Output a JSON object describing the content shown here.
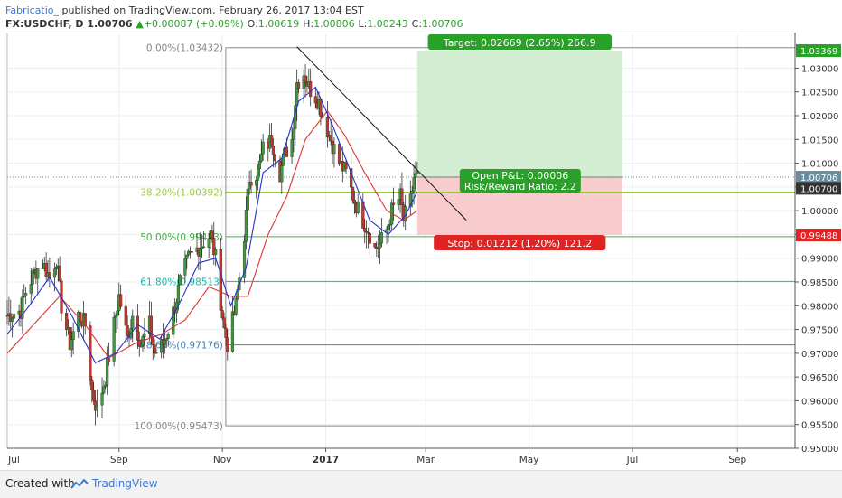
{
  "header": {
    "author": "Fabricatio_",
    "published": " published on TradingView.com, February 26, 2017 13:04 EST",
    "symbol": "FX:USDCHF, D",
    "last": "1.00706",
    "change": "+0.00087 (+0.09%)",
    "o_label": "O:",
    "o_val": "1.00619",
    "h_label": "H:",
    "h_val": "1.00806",
    "l_label": "L:",
    "l_val": "1.00243",
    "c_label": "C:",
    "c_val": "1.00706"
  },
  "footer": {
    "created": "Created with",
    "brand": "TradingView"
  },
  "colors": {
    "up": "#3d9b3d",
    "down": "#c0392b",
    "ma_fast": "#2233cc",
    "ma_slow": "#dd3333",
    "target_zone": "#cdebcd",
    "stop_zone": "#f7c7c7"
  },
  "chart_data": {
    "type": "candlestick",
    "symbol": "FX:USDCHF",
    "interval": "D",
    "ylim": [
      0.95,
      1.0375
    ],
    "x_ticks": [
      {
        "label": "Jul",
        "date": "2016-07-01"
      },
      {
        "label": "Sep",
        "date": "2016-09-01"
      },
      {
        "label": "Nov",
        "date": "2016-11-01"
      },
      {
        "label": "2017",
        "date": "2017-01-01"
      },
      {
        "label": "Mar",
        "date": "2017-03-01"
      },
      {
        "label": "May",
        "date": "2017-05-01"
      },
      {
        "label": "Jul",
        "date": "2017-07-01"
      },
      {
        "label": "Sep",
        "date": "2017-09-01"
      }
    ],
    "y_ticks": [
      "1.03000",
      "1.02500",
      "1.02000",
      "1.01500",
      "1.01000",
      "1.00500",
      "1.00000",
      "0.99500",
      "0.99000",
      "0.98500",
      "0.98000",
      "0.97500",
      "0.97000",
      "0.96500",
      "0.96000",
      "0.95500",
      "0.95000"
    ],
    "close_path": [
      [
        "2016-06-27",
        0.978
      ],
      [
        "2016-07-05",
        0.979
      ],
      [
        "2016-07-08",
        0.983
      ],
      [
        "2016-07-13",
        0.987
      ],
      [
        "2016-07-18",
        0.989
      ],
      [
        "2016-07-22",
        0.986
      ],
      [
        "2016-07-26",
        0.99
      ],
      [
        "2016-07-29",
        0.98
      ],
      [
        "2016-08-03",
        0.972
      ],
      [
        "2016-08-08",
        0.978
      ],
      [
        "2016-08-12",
        0.976
      ],
      [
        "2016-08-16",
        0.962
      ],
      [
        "2016-08-19",
        0.958
      ],
      [
        "2016-08-24",
        0.965
      ],
      [
        "2016-08-29",
        0.976
      ],
      [
        "2016-09-01",
        0.982
      ],
      [
        "2016-09-06",
        0.973
      ],
      [
        "2016-09-09",
        0.978
      ],
      [
        "2016-09-14",
        0.972
      ],
      [
        "2016-09-19",
        0.976
      ],
      [
        "2016-09-22",
        0.97
      ],
      [
        "2016-09-27",
        0.972
      ],
      [
        "2016-09-30",
        0.975
      ],
      [
        "2016-10-04",
        0.98
      ],
      [
        "2016-10-07",
        0.985
      ],
      [
        "2016-10-12",
        0.99
      ],
      [
        "2016-10-17",
        0.992
      ],
      [
        "2016-10-20",
        0.993
      ],
      [
        "2016-10-25",
        0.995
      ],
      [
        "2016-10-28",
        0.99
      ],
      [
        "2016-11-02",
        0.975
      ],
      [
        "2016-11-04",
        0.972
      ],
      [
        "2016-11-09",
        0.98
      ],
      [
        "2016-11-14",
        0.995
      ],
      [
        "2016-11-17",
        1.007
      ],
      [
        "2016-11-22",
        1.008
      ],
      [
        "2016-11-25",
        1.013
      ],
      [
        "2016-11-30",
        1.015
      ],
      [
        "2016-12-05",
        1.008
      ],
      [
        "2016-12-08",
        1.012
      ],
      [
        "2016-12-12",
        1.015
      ],
      [
        "2016-12-15",
        1.027
      ],
      [
        "2016-12-19",
        1.029
      ],
      [
        "2016-12-22",
        1.026
      ],
      [
        "2016-12-28",
        1.023
      ],
      [
        "2016-12-30",
        1.02
      ],
      [
        "2017-01-04",
        1.015
      ],
      [
        "2017-01-09",
        1.01
      ],
      [
        "2017-01-13",
        1.008
      ],
      [
        "2017-01-18",
        1.002
      ],
      [
        "2017-01-23",
        0.998
      ],
      [
        "2017-01-26",
        0.996
      ],
      [
        "2017-01-30",
        0.992
      ],
      [
        "2017-02-02",
        0.993
      ],
      [
        "2017-02-06",
        0.996
      ],
      [
        "2017-02-09",
        1.0
      ],
      [
        "2017-02-14",
        1.003
      ],
      [
        "2017-02-16",
        0.998
      ],
      [
        "2017-02-20",
        1.002
      ],
      [
        "2017-02-22",
        1.007
      ],
      [
        "2017-02-24",
        1.0071
      ]
    ],
    "ema_fast": [
      [
        "2016-06-27",
        0.974
      ],
      [
        "2016-07-10",
        0.98
      ],
      [
        "2016-07-22",
        0.986
      ],
      [
        "2016-08-04",
        0.978
      ],
      [
        "2016-08-18",
        0.968
      ],
      [
        "2016-08-30",
        0.97
      ],
      [
        "2016-09-12",
        0.976
      ],
      [
        "2016-09-25",
        0.973
      ],
      [
        "2016-10-06",
        0.98
      ],
      [
        "2016-10-18",
        0.989
      ],
      [
        "2016-10-28",
        0.99
      ],
      [
        "2016-11-06",
        0.98
      ],
      [
        "2016-11-15",
        0.988
      ],
      [
        "2016-11-25",
        1.008
      ],
      [
        "2016-12-06",
        1.011
      ],
      [
        "2016-12-16",
        1.023
      ],
      [
        "2016-12-26",
        1.026
      ],
      [
        "2017-01-05",
        1.018
      ],
      [
        "2017-01-16",
        1.008
      ],
      [
        "2017-01-27",
        0.998
      ],
      [
        "2017-02-07",
        0.995
      ],
      [
        "2017-02-17",
        0.999
      ],
      [
        "2017-02-24",
        1.004
      ]
    ],
    "ema_slow": [
      [
        "2016-06-27",
        0.97
      ],
      [
        "2016-07-15",
        0.977
      ],
      [
        "2016-07-28",
        0.982
      ],
      [
        "2016-08-12",
        0.976
      ],
      [
        "2016-08-26",
        0.969
      ],
      [
        "2016-09-10",
        0.972
      ],
      [
        "2016-09-26",
        0.974
      ],
      [
        "2016-10-10",
        0.977
      ],
      [
        "2016-10-24",
        0.984
      ],
      [
        "2016-11-06",
        0.982
      ],
      [
        "2016-11-16",
        0.982
      ],
      [
        "2016-11-28",
        0.995
      ],
      [
        "2016-12-09",
        1.003
      ],
      [
        "2016-12-20",
        1.015
      ],
      [
        "2017-01-02",
        1.021
      ],
      [
        "2017-01-12",
        1.016
      ],
      [
        "2017-01-24",
        1.008
      ],
      [
        "2017-02-06",
        1.0
      ],
      [
        "2017-02-16",
        0.998
      ],
      [
        "2017-02-24",
        1.0
      ]
    ],
    "fib_levels": [
      {
        "label": "0.00%(1.03432)",
        "price": 1.03432,
        "color": "#888888"
      },
      {
        "label": "38.20%(1.00392)",
        "price": 1.00392,
        "color": "#9acd32"
      },
      {
        "label": "50.00%(0.99453)",
        "price": 0.99453,
        "color": "#3cb043"
      },
      {
        "label": "61.80%(0.98513)",
        "price": 0.98513,
        "color": "#20b2aa"
      },
      {
        "label": "78.60%(0.97176)",
        "price": 0.97176,
        "color": "#4682b4"
      },
      {
        "label": "100.00%(0.95473)",
        "price": 0.95473,
        "color": "#888888"
      }
    ],
    "trendline": [
      [
        "2016-12-15",
        1.0345
      ],
      [
        "2017-03-25",
        0.998
      ]
    ],
    "position": {
      "start": "2017-02-24",
      "end": "2017-06-25",
      "entry": 1.00706,
      "target": 1.03369,
      "stop": 0.99488,
      "target_label": "Target: 0.02669 (2.65%) 266.9",
      "stop_label": "Stop: 0.01212 (1.20%) 121.2",
      "pnl_label": "Open P&L: 0.00006",
      "rr_label": "Risk/Reward Ratio: 2.2"
    },
    "price_labels": [
      {
        "text": "1.03369",
        "price": 1.03369,
        "bg": "#2aa02a",
        "fg": "#ffffff"
      },
      {
        "text": "1.00706",
        "price": 1.00706,
        "bg": "#6b8e9e",
        "fg": "#ffffff"
      },
      {
        "text": "1.00700",
        "price": 1.007,
        "bg": "#333333",
        "fg": "#ffffff"
      },
      {
        "text": "0.99488",
        "price": 0.99488,
        "bg": "#e02424",
        "fg": "#ffffff"
      }
    ]
  }
}
